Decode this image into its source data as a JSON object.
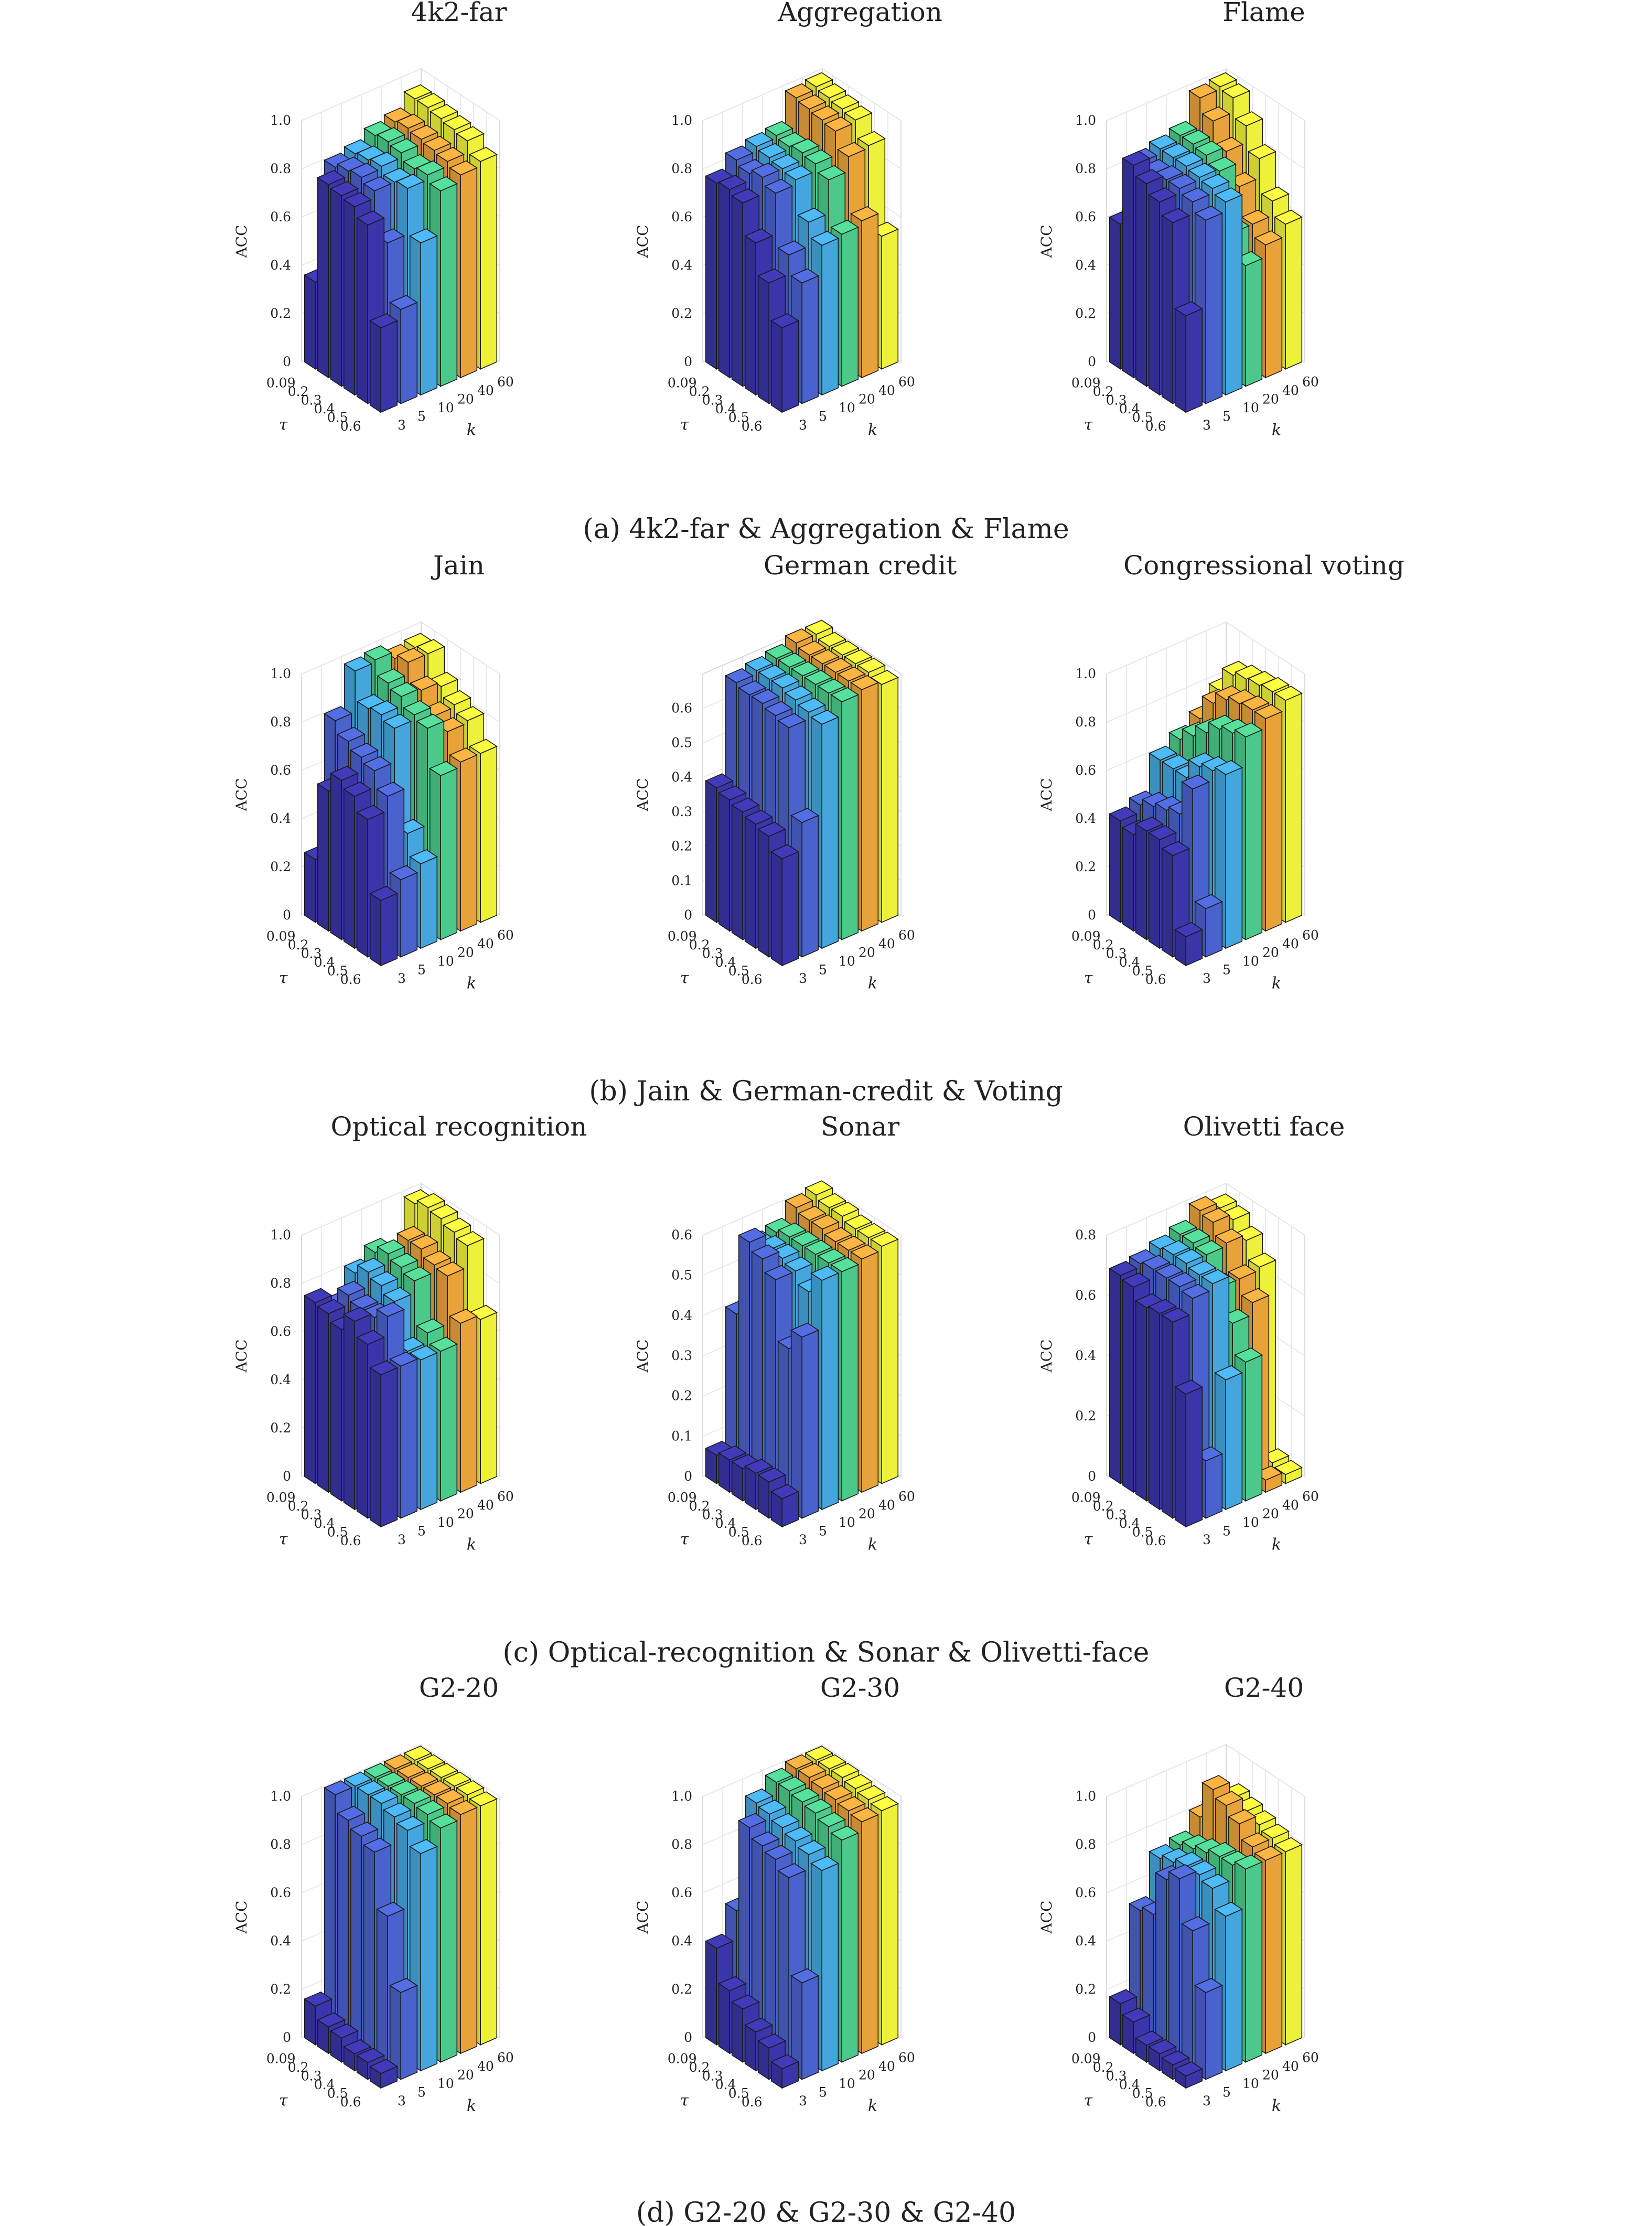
{
  "figure": {
    "captions": [
      "(a) 4k2-far & Aggregation & Flame",
      "(b) Jain & German-credit & Voting",
      "(c) Optical-recognition & Sonar & Olivetti-face",
      "(d) G2-20 & G2-30 & G2-40"
    ]
  },
  "colors": {
    "k_colors": [
      "#3a35a8",
      "#4a62cc",
      "#45a6de",
      "#4cc98a",
      "#e8a23a",
      "#eef13a"
    ]
  },
  "chart_data": [
    {
      "type": "bar3d",
      "title": "4k2-far",
      "xlabel": "τ",
      "ylabel": "k",
      "zlabel": "ACC",
      "tau": [
        "0.09",
        "0.2",
        "0.3",
        "0.4",
        "0.5",
        "0.6"
      ],
      "k": [
        "3",
        "5",
        "10",
        "20",
        "40",
        "60"
      ],
      "zticks": [
        "0",
        "0.2",
        "0.4",
        "0.6",
        "0.8",
        "1.0"
      ],
      "zlim": [
        0,
        1
      ],
      "values": [
        [
          0.36,
          0.8,
          0.79,
          0.78,
          0.74,
          0.35
        ],
        [
          0.8,
          0.82,
          0.83,
          0.81,
          0.63,
          0.39
        ],
        [
          0.82,
          0.83,
          0.84,
          0.81,
          0.82,
          0.63
        ],
        [
          0.86,
          0.87,
          0.86,
          0.83,
          0.84,
          0.81
        ],
        [
          0.88,
          0.89,
          0.88,
          0.87,
          0.86,
          0.84
        ],
        [
          0.94,
          0.94,
          0.93,
          0.92,
          0.91,
          0.86
        ]
      ]
    },
    {
      "type": "bar3d",
      "title": "Aggregation",
      "xlabel": "τ",
      "ylabel": "k",
      "zlabel": "ACC",
      "tau": [
        "0.09",
        "0.2",
        "0.3",
        "0.4",
        "0.5",
        "0.6"
      ],
      "k": [
        "3",
        "5",
        "10",
        "20",
        "40",
        "60"
      ],
      "zticks": [
        "0",
        "0.2",
        "0.4",
        "0.6",
        "0.8",
        "1.0"
      ],
      "zlim": [
        0,
        1
      ],
      "values": [
        [
          0.77,
          0.78,
          0.76,
          0.63,
          0.5,
          0.35
        ],
        [
          0.83,
          0.81,
          0.83,
          0.8,
          0.58,
          0.5
        ],
        [
          0.85,
          0.84,
          0.83,
          0.82,
          0.68,
          0.62
        ],
        [
          0.86,
          0.85,
          0.86,
          0.85,
          0.82,
          0.63
        ],
        [
          0.98,
          0.97,
          0.96,
          0.95,
          0.88,
          0.65
        ],
        [
          0.99,
          0.98,
          0.97,
          0.96,
          0.89,
          0.55
        ]
      ]
    },
    {
      "type": "bar3d",
      "title": "Flame",
      "xlabel": "τ",
      "ylabel": "k",
      "zlabel": "ACC",
      "tau": [
        "0.09",
        "0.2",
        "0.3",
        "0.4",
        "0.5",
        "0.6"
      ],
      "k": [
        "3",
        "5",
        "10",
        "20",
        "40",
        "60"
      ],
      "zticks": [
        "0",
        "0.2",
        "0.4",
        "0.6",
        "0.8",
        "1.0"
      ],
      "zlim": [
        0,
        1
      ],
      "values": [
        [
          0.6,
          0.88,
          0.84,
          0.8,
          0.75,
          0.4
        ],
        [
          0.82,
          0.81,
          0.82,
          0.82,
          0.8,
          0.76
        ],
        [
          0.84,
          0.84,
          0.84,
          0.83,
          0.82,
          0.8
        ],
        [
          0.86,
          0.86,
          0.85,
          0.82,
          0.6,
          0.5
        ],
        [
          0.98,
          0.92,
          0.83,
          0.72,
          0.6,
          0.55
        ],
        [
          0.99,
          0.98,
          0.9,
          0.8,
          0.66,
          0.6
        ]
      ]
    },
    {
      "type": "bar3d",
      "title": "Jain",
      "xlabel": "τ",
      "ylabel": "k",
      "zlabel": "ACC",
      "tau": [
        "0.09",
        "0.2",
        "0.3",
        "0.4",
        "0.5",
        "0.6"
      ],
      "k": [
        "3",
        "5",
        "10",
        "20",
        "40",
        "60"
      ],
      "zticks": [
        "0",
        "0.2",
        "0.4",
        "0.6",
        "0.8",
        "1.0"
      ],
      "zlim": [
        0,
        1
      ],
      "values": [
        [
          0.26,
          0.58,
          0.66,
          0.63,
          0.57,
          0.27
        ],
        [
          0.8,
          0.75,
          0.72,
          0.7,
          0.63,
          0.32
        ],
        [
          0.97,
          0.85,
          0.86,
          0.84,
          0.44,
          0.35
        ],
        [
          0.98,
          0.92,
          0.9,
          0.86,
          0.84,
          0.68
        ],
        [
          0.95,
          0.97,
          0.89,
          0.82,
          0.79,
          0.7
        ],
        [
          0.96,
          0.97,
          0.87,
          0.83,
          0.8,
          0.7
        ]
      ]
    },
    {
      "type": "bar3d",
      "title": "German credit",
      "xlabel": "τ",
      "ylabel": "k",
      "zlabel": "ACC",
      "tau": [
        "0.09",
        "0.2",
        "0.3",
        "0.4",
        "0.5",
        "0.6"
      ],
      "k": [
        "3",
        "5",
        "10",
        "20",
        "40",
        "60"
      ],
      "zticks": [
        "0",
        "0.1",
        "0.2",
        "0.3",
        "0.4",
        "0.5",
        "0.6"
      ],
      "zlim": [
        0,
        0.7
      ],
      "values": [
        [
          0.39,
          0.38,
          0.37,
          0.36,
          0.35,
          0.31
        ],
        [
          0.67,
          0.66,
          0.66,
          0.65,
          0.64,
          0.39
        ],
        [
          0.68,
          0.68,
          0.68,
          0.67,
          0.66,
          0.65
        ],
        [
          0.69,
          0.69,
          0.69,
          0.69,
          0.69,
          0.69
        ],
        [
          0.71,
          0.7,
          0.7,
          0.7,
          0.7,
          0.7
        ],
        [
          0.71,
          0.7,
          0.7,
          0.7,
          0.7,
          0.69
        ]
      ]
    },
    {
      "type": "bar3d",
      "title": "Congressional voting",
      "xlabel": "τ",
      "ylabel": "k",
      "zlabel": "ACC",
      "tau": [
        "0.09",
        "0.2",
        "0.3",
        "0.4",
        "0.5",
        "0.6"
      ],
      "k": [
        "3",
        "5",
        "10",
        "20",
        "40",
        "60"
      ],
      "zticks": [
        "0",
        "0.2",
        "0.4",
        "0.6",
        "0.8",
        "1.0"
      ],
      "zlim": [
        0,
        1
      ],
      "values": [
        [
          0.42,
          0.4,
          0.45,
          0.45,
          0.42,
          0.12
        ],
        [
          0.45,
          0.48,
          0.5,
          0.52,
          0.66,
          0.2
        ],
        [
          0.6,
          0.6,
          0.6,
          0.68,
          0.7,
          0.72
        ],
        [
          0.65,
          0.7,
          0.75,
          0.8,
          0.82,
          0.84
        ],
        [
          0.7,
          0.8,
          0.85,
          0.87,
          0.88,
          0.88
        ],
        [
          0.78,
          0.88,
          0.9,
          0.91,
          0.92,
          0.92
        ]
      ]
    },
    {
      "type": "bar3d",
      "title": "Optical recognition",
      "xlabel": "τ",
      "ylabel": "k",
      "zlabel": "ACC",
      "tau": [
        "0.09",
        "0.2",
        "0.3",
        "0.4",
        "0.5",
        "0.6"
      ],
      "k": [
        "3",
        "5",
        "10",
        "20",
        "40",
        "60"
      ],
      "zticks": [
        "0",
        "0.2",
        "0.4",
        "0.6",
        "0.8",
        "1.0"
      ],
      "zlim": [
        0,
        1
      ],
      "values": [
        [
          0.75,
          0.74,
          0.71,
          0.78,
          0.72,
          0.63
        ],
        [
          0.7,
          0.78,
          0.76,
          0.76,
          0.8,
          0.63
        ],
        [
          0.8,
          0.84,
          0.82,
          0.79,
          0.62,
          0.62
        ],
        [
          0.85,
          0.88,
          0.86,
          0.84,
          0.66,
          0.62
        ],
        [
          0.75,
          0.9,
          0.9,
          0.87,
          0.86,
          0.7
        ],
        [
          0.98,
          1.0,
          0.99,
          0.97,
          0.95,
          0.68
        ]
      ]
    },
    {
      "type": "bar3d",
      "title": "Sonar",
      "xlabel": "τ",
      "ylabel": "k",
      "zlabel": "ACC",
      "tau": [
        "0.09",
        "0.2",
        "0.3",
        "0.4",
        "0.5",
        "0.6"
      ],
      "k": [
        "3",
        "5",
        "10",
        "20",
        "40",
        "60"
      ],
      "zticks": [
        "0",
        "0.1",
        "0.2",
        "0.3",
        "0.4",
        "0.5",
        "0.6"
      ],
      "zlim": [
        0,
        0.6
      ],
      "values": [
        [
          0.07,
          0.08,
          0.08,
          0.09,
          0.09,
          0.07
        ],
        [
          0.4,
          0.6,
          0.58,
          0.55,
          0.4,
          0.45
        ],
        [
          0.55,
          0.56,
          0.56,
          0.55,
          0.52,
          0.57
        ],
        [
          0.56,
          0.57,
          0.57,
          0.57,
          0.57,
          0.57
        ],
        [
          0.6,
          0.59,
          0.59,
          0.58,
          0.58,
          0.58
        ],
        [
          0.61,
          0.6,
          0.6,
          0.59,
          0.59,
          0.59
        ]
      ]
    },
    {
      "type": "bar3d",
      "title": "Olivetti face",
      "xlabel": "τ",
      "ylabel": "k",
      "zlabel": "ACC",
      "tau": [
        "0.09",
        "0.2",
        "0.3",
        "0.4",
        "0.5",
        "0.6"
      ],
      "k": [
        "3",
        "5",
        "10",
        "20",
        "40",
        "60"
      ],
      "zticks": [
        "0",
        "0.2",
        "0.4",
        "0.6",
        "0.8"
      ],
      "zlim": [
        0,
        0.8
      ],
      "values": [
        [
          0.69,
          0.68,
          0.64,
          0.65,
          0.65,
          0.44
        ],
        [
          0.7,
          0.71,
          0.71,
          0.71,
          0.7,
          0.19
        ],
        [
          0.72,
          0.73,
          0.73,
          0.72,
          0.72,
          0.43
        ],
        [
          0.74,
          0.74,
          0.73,
          0.65,
          0.56,
          0.46
        ],
        [
          0.79,
          0.78,
          0.74,
          0.65,
          0.6,
          0.04
        ],
        [
          0.77,
          0.76,
          0.72,
          0.66,
          0.04,
          0.03
        ]
      ]
    },
    {
      "type": "bar3d",
      "title": "G2-20",
      "xlabel": "τ",
      "ylabel": "k",
      "zlabel": "ACC",
      "tau": [
        "0.09",
        "0.2",
        "0.3",
        "0.4",
        "0.5",
        "0.6"
      ],
      "k": [
        "3",
        "5",
        "10",
        "20",
        "40",
        "60"
      ],
      "zticks": [
        "0",
        "0.2",
        "0.4",
        "0.6",
        "0.8",
        "1.0"
      ],
      "zlim": [
        0,
        1
      ],
      "values": [
        [
          0.16,
          0.11,
          0.1,
          0.07,
          0.07,
          0.06
        ],
        [
          1.0,
          0.93,
          0.9,
          0.87,
          0.64,
          0.36
        ],
        [
          1.0,
          1.0,
          1.0,
          0.98,
          0.96,
          0.9
        ],
        [
          1.0,
          1.0,
          1.0,
          1.0,
          0.99,
          0.97
        ],
        [
          1.0,
          1.0,
          1.0,
          1.0,
          1.0,
          0.99
        ],
        [
          1.0,
          1.0,
          1.0,
          1.0,
          1.0,
          0.99
        ]
      ]
    },
    {
      "type": "bar3d",
      "title": "G2-30",
      "xlabel": "τ",
      "ylabel": "k",
      "zlabel": "ACC",
      "tau": [
        "0.09",
        "0.2",
        "0.3",
        "0.4",
        "0.5",
        "0.6"
      ],
      "k": [
        "3",
        "5",
        "10",
        "20",
        "40",
        "60"
      ],
      "zticks": [
        "0",
        "0.2",
        "0.4",
        "0.6",
        "0.8",
        "1.0"
      ],
      "zlim": [
        0,
        1
      ],
      "values": [
        [
          0.4,
          0.26,
          0.22,
          0.16,
          0.13,
          0.08
        ],
        [
          0.52,
          0.9,
          0.86,
          0.84,
          0.8,
          0.4
        ],
        [
          0.93,
          0.92,
          0.9,
          0.88,
          0.86,
          0.83
        ],
        [
          0.98,
          0.98,
          0.97,
          0.96,
          0.94,
          0.92
        ],
        [
          1.0,
          1.0,
          0.99,
          0.98,
          0.97,
          0.96
        ],
        [
          1.0,
          1.0,
          1.0,
          0.99,
          0.98,
          0.97
        ]
      ]
    },
    {
      "type": "bar3d",
      "title": "G2-40",
      "xlabel": "τ",
      "ylabel": "k",
      "zlabel": "ACC",
      "tau": [
        "0.09",
        "0.2",
        "0.3",
        "0.4",
        "0.5",
        "0.6"
      ],
      "k": [
        "3",
        "5",
        "10",
        "20",
        "40",
        "60"
      ],
      "zticks": [
        "0",
        "0.2",
        "0.4",
        "0.6",
        "0.8",
        "1.0"
      ],
      "zlim": [
        0,
        1
      ],
      "values": [
        [
          0.17,
          0.13,
          0.07,
          0.07,
          0.06,
          0.05
        ],
        [
          0.52,
          0.54,
          0.72,
          0.76,
          0.58,
          0.36
        ],
        [
          0.7,
          0.72,
          0.74,
          0.74,
          0.72,
          0.64
        ],
        [
          0.72,
          0.74,
          0.76,
          0.78,
          0.78,
          0.8
        ],
        [
          0.8,
          0.95,
          0.92,
          0.88,
          0.82,
          0.8
        ],
        [
          0.8,
          0.88,
          0.86,
          0.84,
          0.82,
          0.8
        ]
      ]
    }
  ]
}
